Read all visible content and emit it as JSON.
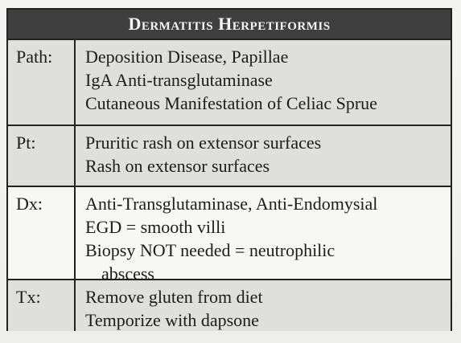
{
  "title": "Dermatitis Herpetiformis",
  "rows": [
    {
      "label": "Path:",
      "lines": [
        "Deposition Disease, Papillae",
        "IgA Anti-transglutaminase",
        "Cutaneous Manifestation of Celiac Sprue"
      ]
    },
    {
      "label": "Pt:",
      "lines": [
        "Pruritic rash on extensor surfaces",
        "Rash on extensor surfaces"
      ]
    },
    {
      "label": "Dx:",
      "lines": [
        "Anti-Transglutaminase, Anti-Endomysial",
        "EGD = smooth villi",
        "Biopsy NOT needed = neutrophilic",
        "abscess"
      ]
    },
    {
      "label": "Tx:",
      "lines": [
        "Remove gluten from diet",
        "Temporize with dapsone"
      ]
    }
  ]
}
